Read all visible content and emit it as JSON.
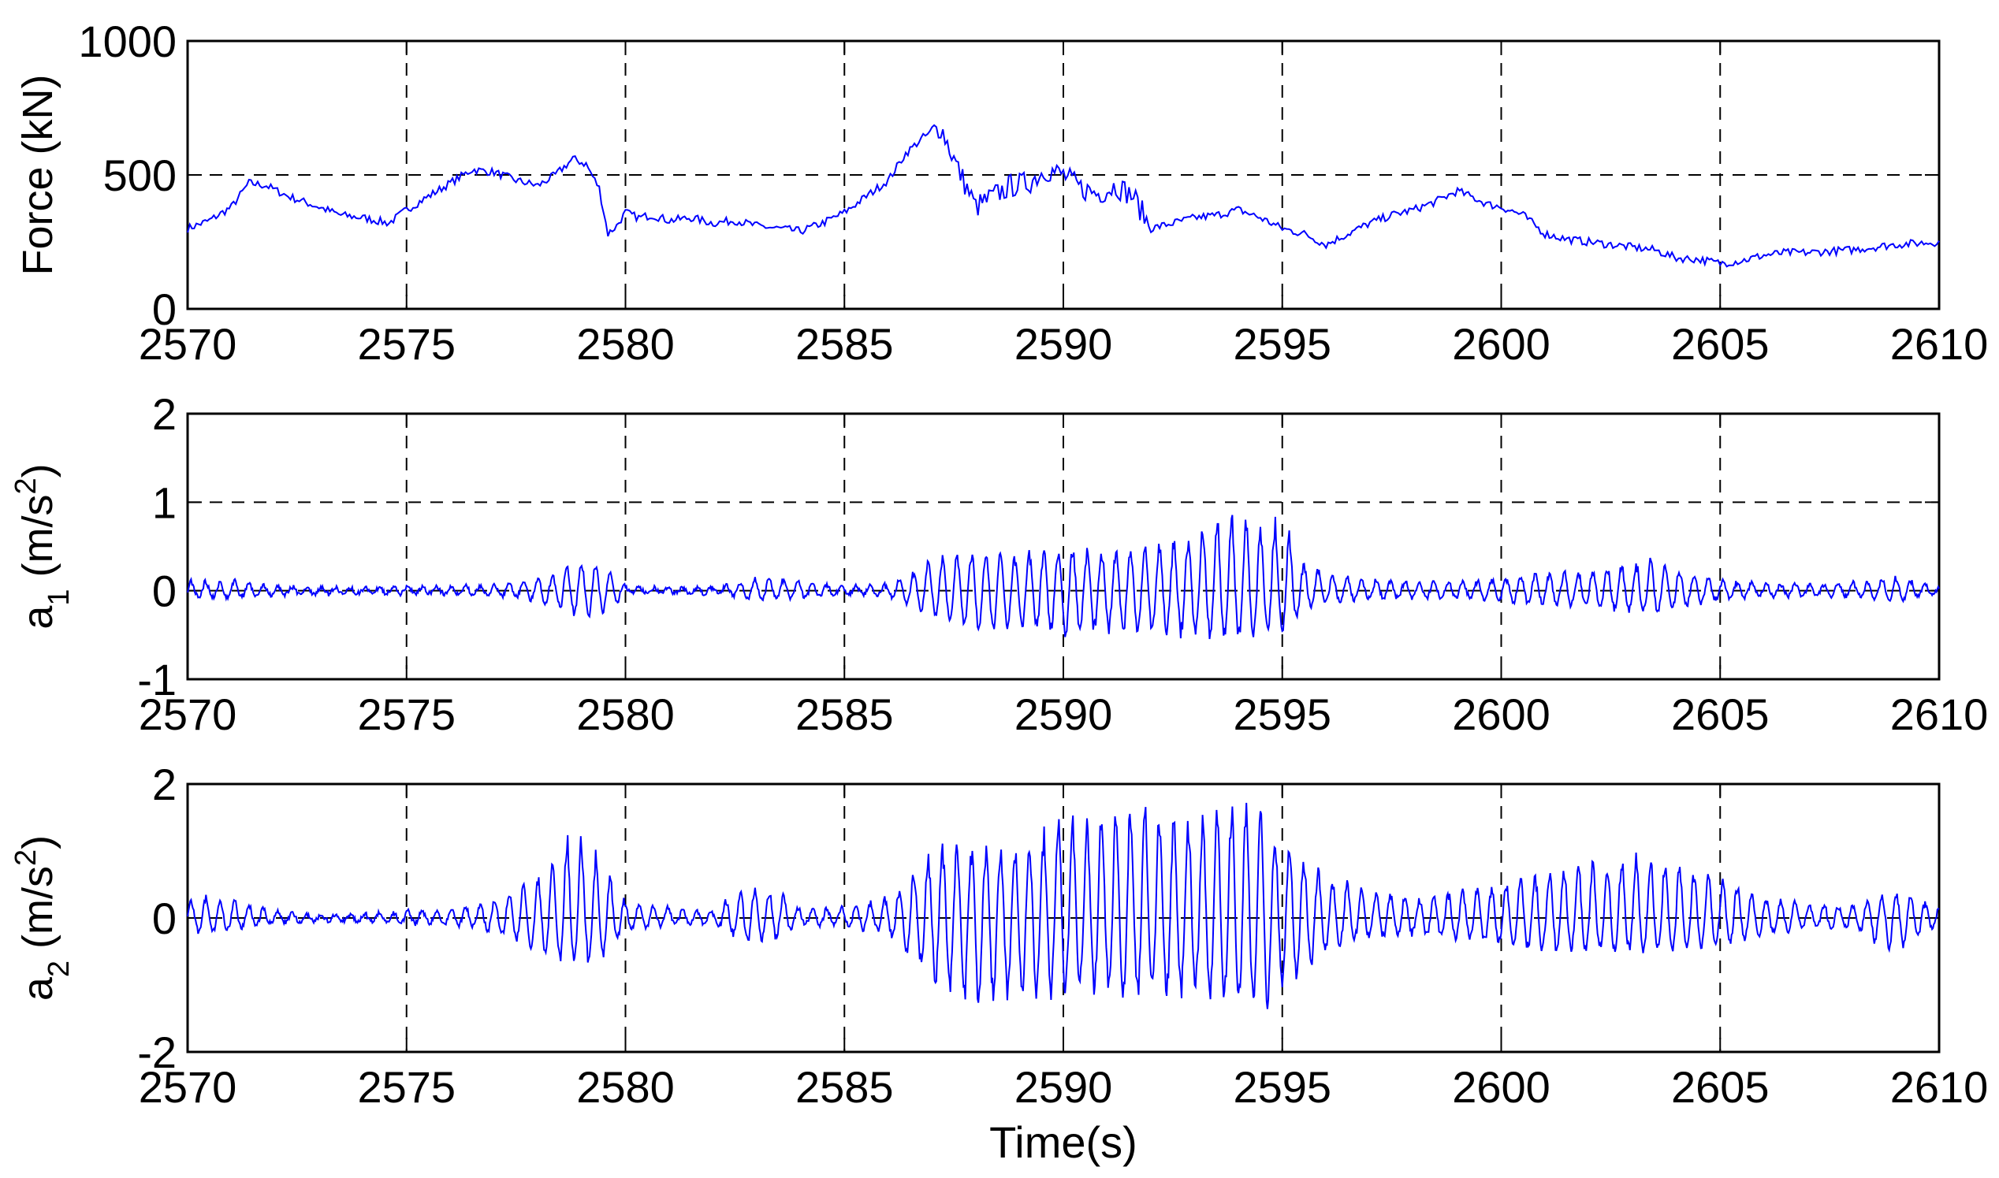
{
  "chart_data": [
    {
      "type": "line",
      "ylabel": "Force (kN)",
      "xlabel": "",
      "xlim": [
        2570,
        2610
      ],
      "ylim": [
        0,
        1000
      ],
      "xticks": [
        "2570",
        "2575",
        "2580",
        "2585",
        "2590",
        "2595",
        "2600",
        "2605",
        "2610"
      ],
      "yticks": [
        "0",
        "500",
        "1000"
      ],
      "grid": true,
      "line_color": "#0000ff",
      "series": [
        {
          "x": [
            2570,
            2570.5,
            2571,
            2571.4,
            2571.8,
            2572.3,
            2573,
            2573.5,
            2574,
            2574.6,
            2575,
            2575.5,
            2576,
            2576.5,
            2577,
            2577.5,
            2578,
            2578.4,
            2578.8,
            2579.1,
            2579.4,
            2579.6,
            2579.8,
            2580,
            2580.3,
            2580.6,
            2581,
            2581.5,
            2582,
            2582.5,
            2583,
            2583.5,
            2584,
            2584.5,
            2585,
            2585.5,
            2586,
            2586.4,
            2586.8,
            2587.2,
            2587.6,
            2588,
            2588.4,
            2588.8,
            2589.2,
            2589.6,
            2590,
            2590.4,
            2590.8,
            2591.2,
            2591.6,
            2592,
            2592.5,
            2593,
            2593.5,
            2594,
            2594.5,
            2595,
            2595.5,
            2596,
            2596.5,
            2597,
            2597.5,
            2598,
            2598.5,
            2599,
            2599.3,
            2599.7,
            2600,
            2600.5,
            2601,
            2601.5,
            2602,
            2602.5,
            2603,
            2603.5,
            2604,
            2604.5,
            2605,
            2605.5,
            2606,
            2606.5,
            2607,
            2607.5,
            2608,
            2608.5,
            2609,
            2609.5,
            2610
          ],
          "y": [
            300,
            330,
            380,
            470,
            460,
            420,
            380,
            350,
            340,
            320,
            370,
            420,
            470,
            520,
            510,
            480,
            460,
            500,
            560,
            540,
            450,
            280,
            310,
            360,
            340,
            350,
            330,
            340,
            320,
            330,
            310,
            300,
            290,
            320,
            360,
            420,
            480,
            580,
            640,
            680,
            520,
            380,
            420,
            460,
            470,
            520,
            500,
            450,
            430,
            460,
            420,
            300,
            320,
            340,
            350,
            370,
            340,
            300,
            280,
            240,
            280,
            320,
            350,
            370,
            400,
            440,
            420,
            390,
            380,
            350,
            280,
            260,
            250,
            240,
            230,
            220,
            190,
            185,
            170,
            180,
            200,
            210,
            210,
            215,
            220,
            230,
            240,
            245,
            250
          ]
        }
      ]
    },
    {
      "type": "line",
      "ylabel": "a1 (m/s2)",
      "ylabel_base": "a",
      "ylabel_sub": "1",
      "ylabel_unit_base": " (m/s",
      "ylabel_sup": "2",
      "ylabel_close": ")",
      "xlabel": "",
      "xlim": [
        2570,
        2610
      ],
      "ylim": [
        -1,
        2
      ],
      "xticks": [
        "2570",
        "2575",
        "2580",
        "2585",
        "2590",
        "2595",
        "2600",
        "2605",
        "2610"
      ],
      "yticks": [
        "-1",
        "0",
        "1",
        "2"
      ],
      "grid": true,
      "line_color": "#0000ff",
      "osc_period_s": 0.33,
      "envelope": {
        "t": [
          2570,
          2571,
          2572,
          2574,
          2575,
          2576,
          2577,
          2578,
          2579,
          2579.6,
          2580,
          2581,
          2582,
          2583,
          2584,
          2585,
          2586,
          2587,
          2588,
          2589,
          2590,
          2591,
          2592,
          2593,
          2594,
          2594.6,
          2595,
          2595.4,
          2596,
          2597,
          2598,
          2599,
          2600,
          2601,
          2602,
          2603,
          2603.5,
          2604,
          2605,
          2606,
          2607,
          2608,
          2609,
          2610
        ],
        "pos": [
          0.1,
          0.12,
          0.06,
          0.03,
          0.04,
          0.05,
          0.07,
          0.14,
          0.35,
          0.25,
          0.05,
          0.04,
          0.03,
          0.15,
          0.12,
          0.05,
          0.06,
          0.35,
          0.45,
          0.4,
          0.5,
          0.45,
          0.48,
          0.65,
          0.9,
          0.75,
          0.8,
          0.35,
          0.2,
          0.12,
          0.1,
          0.1,
          0.15,
          0.2,
          0.22,
          0.3,
          0.35,
          0.25,
          0.12,
          0.08,
          0.08,
          0.08,
          0.15,
          0.05
        ],
        "neg": [
          0.08,
          0.08,
          0.05,
          0.03,
          0.03,
          0.04,
          0.06,
          0.12,
          0.3,
          0.22,
          0.04,
          0.03,
          0.03,
          0.1,
          0.1,
          0.04,
          0.05,
          0.3,
          0.45,
          0.45,
          0.5,
          0.45,
          0.45,
          0.5,
          0.55,
          0.45,
          0.5,
          0.25,
          0.15,
          0.1,
          0.08,
          0.08,
          0.12,
          0.15,
          0.18,
          0.25,
          0.25,
          0.2,
          0.1,
          0.06,
          0.06,
          0.06,
          0.12,
          0.04
        ]
      }
    },
    {
      "type": "line",
      "ylabel": "a2 (m/s2)",
      "ylabel_base": "a",
      "ylabel_sub": "2",
      "ylabel_unit_base": " (m/s",
      "ylabel_sup": "2",
      "ylabel_close": ")",
      "xlabel": "Time(s)",
      "xlim": [
        2570,
        2610
      ],
      "ylim": [
        -2,
        2
      ],
      "xticks": [
        "2570",
        "2575",
        "2580",
        "2585",
        "2590",
        "2595",
        "2600",
        "2605",
        "2610"
      ],
      "yticks": [
        "-2",
        "0",
        "2"
      ],
      "grid": true,
      "line_color": "#0000ff",
      "osc_period_s": 0.33,
      "envelope": {
        "t": [
          2570,
          2571,
          2572,
          2573,
          2574,
          2575,
          2576,
          2577,
          2578,
          2578.8,
          2579.5,
          2580,
          2581,
          2582,
          2582.8,
          2583.5,
          2584,
          2585,
          2586,
          2587,
          2588,
          2589,
          2590,
          2591,
          2592,
          2593,
          2594,
          2594.5,
          2595,
          2596,
          2597,
          2598,
          2599,
          2600,
          2601,
          2602,
          2603,
          2604,
          2605,
          2606,
          2607,
          2608,
          2609,
          2610
        ],
        "pos": [
          0.3,
          0.3,
          0.1,
          0.05,
          0.06,
          0.1,
          0.15,
          0.25,
          0.6,
          1.3,
          0.8,
          0.25,
          0.15,
          0.1,
          0.5,
          0.4,
          0.15,
          0.15,
          0.3,
          1.0,
          1.1,
          1.0,
          1.5,
          1.6,
          1.7,
          1.5,
          1.75,
          1.6,
          1.2,
          0.6,
          0.4,
          0.3,
          0.4,
          0.5,
          0.7,
          0.8,
          0.9,
          0.8,
          0.6,
          0.3,
          0.2,
          0.2,
          0.4,
          0.15
        ],
        "neg": [
          0.25,
          0.2,
          0.08,
          0.05,
          0.05,
          0.08,
          0.1,
          0.2,
          0.5,
          0.7,
          0.6,
          0.2,
          0.1,
          0.1,
          0.4,
          0.3,
          0.1,
          0.1,
          0.25,
          0.9,
          1.3,
          1.2,
          1.1,
          1.1,
          1.2,
          1.1,
          1.3,
          1.4,
          1.1,
          0.5,
          0.3,
          0.25,
          0.3,
          0.4,
          0.5,
          0.5,
          0.5,
          0.5,
          0.4,
          0.25,
          0.15,
          0.15,
          0.5,
          0.1
        ]
      }
    }
  ]
}
